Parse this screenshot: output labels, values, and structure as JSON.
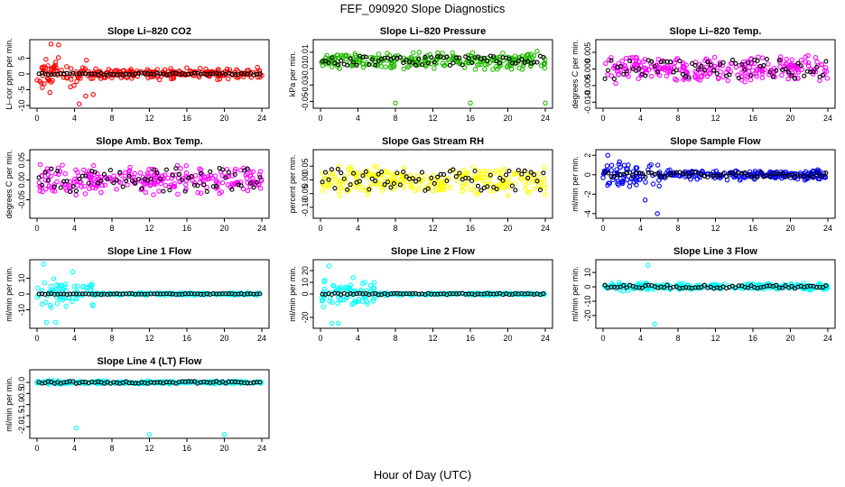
{
  "figure": {
    "title": "FEF_090920  Slope Diagnostics",
    "xlabel": "Hour of Day (UTC)"
  },
  "chart_data": [
    {
      "type": "scatter",
      "title": "Slope Li–820 CO2",
      "ylabel": "Li–cor ppm per min.",
      "xlim": [
        0,
        24
      ],
      "ylim": [
        -10,
        10
      ],
      "yticks": [
        "-10",
        "-5",
        "0",
        "5"
      ],
      "color": "#ff0000",
      "spread": 2.2,
      "early_spread": 6.0,
      "outliers": [
        [
          1.5,
          9.5
        ],
        [
          2.3,
          9.2
        ],
        [
          4.5,
          -9.5
        ],
        [
          5.2,
          -7.0
        ],
        [
          6.0,
          -6.5
        ]
      ],
      "mean_spread": 0.3,
      "seed": 11
    },
    {
      "type": "scatter",
      "title": "Slope Li–820 Pressure",
      "ylabel": "kPa per min.",
      "xlim": [
        0,
        24
      ],
      "ylim": [
        -0.055,
        0.022
      ],
      "yticks": [
        "-0.05",
        "-0.03",
        "-0.01",
        "0.01"
      ],
      "color": "#22bb00",
      "spread": 0.012,
      "early_spread": 0.012,
      "outliers": [
        [
          8.0,
          -0.052
        ],
        [
          16.0,
          -0.052
        ],
        [
          24.0,
          -0.052
        ]
      ],
      "mean_spread": 0.006,
      "seed": 23
    },
    {
      "type": "scatter",
      "title": "Slope Li–820 Temp.",
      "ylabel": "degrees C per min.",
      "xlim": [
        0,
        24
      ],
      "ylim": [
        -0.011,
        0.008
      ],
      "yticks": [
        "-0.010",
        "-0.005",
        "0.000",
        "0.005"
      ],
      "color": "#ff00ff",
      "spread": 0.0045,
      "early_spread": 0.0045,
      "outliers": [],
      "mean_spread": 0.003,
      "seed": 37
    },
    {
      "type": "scatter",
      "title": "Slope Amb. Box Temp.",
      "ylabel": "degrees C per min.",
      "xlim": [
        0,
        24
      ],
      "ylim": [
        -0.09,
        0.07
      ],
      "yticks": [
        "-0.05",
        "0.00",
        "0.05"
      ],
      "color": "#ff00ff",
      "spread": 0.04,
      "early_spread": 0.05,
      "outliers": [],
      "mean_spread": 0.03,
      "seed": 41
    },
    {
      "type": "scatter",
      "title": "Slope Gas Stream RH",
      "ylabel": "percent per min.",
      "xlim": [
        0,
        24
      ],
      "ylim": [
        -0.13,
        0.1
      ],
      "yticks": [
        "-0.10",
        "-0.05",
        "0.00",
        "0.05"
      ],
      "color": "#ffff00",
      "spread": 0.06,
      "early_spread": 0.07,
      "outliers": [],
      "mean_spread": 0.04,
      "seed": 53
    },
    {
      "type": "scatter",
      "title": "Slope Sample Flow",
      "ylabel": "ml/min per min.",
      "xlim": [
        0,
        24
      ],
      "ylim": [
        -4.2,
        2.3
      ],
      "yticks": [
        "-4",
        "-2",
        "0",
        "2"
      ],
      "color": "#0000ff",
      "spread": 0.6,
      "early_spread": 1.4,
      "outliers": [
        [
          0.5,
          2.0
        ],
        [
          5.8,
          -4.0
        ],
        [
          4.5,
          -2.6
        ]
      ],
      "mean_spread": 0.25,
      "seed": 67
    },
    {
      "type": "scatter",
      "title": "Slope Line 1 Flow",
      "ylabel": "ml/min per min.",
      "xlim": [
        0,
        24
      ],
      "ylim": [
        -20,
        20
      ],
      "yticks": [
        "-10",
        "0",
        "10"
      ],
      "color": "#00ffff",
      "spread": 1.0,
      "early_spread": 11.0,
      "outliers": [
        [
          0.7,
          19
        ],
        [
          1.0,
          -18
        ],
        [
          2.0,
          -18
        ],
        [
          3.8,
          14
        ]
      ],
      "mean_spread": 0.3,
      "seed": 71
    },
    {
      "type": "scatter",
      "title": "Slope Line 2 Flow",
      "ylabel": "ml/min per min.",
      "xlim": [
        0,
        24
      ],
      "ylim": [
        -27,
        27
      ],
      "yticks": [
        "-20",
        "0",
        "10",
        "20"
      ],
      "color": "#00ffff",
      "spread": 1.2,
      "early_spread": 14.0,
      "outliers": [
        [
          0.9,
          24
        ],
        [
          1.2,
          -25
        ],
        [
          1.9,
          -25
        ],
        [
          3.5,
          14
        ]
      ],
      "mean_spread": 0.6,
      "seed": 83
    },
    {
      "type": "scatter",
      "title": "Slope Line 3 Flow",
      "ylabel": "ml/min per min.",
      "xlim": [
        0,
        24
      ],
      "ylim": [
        -27,
        17
      ],
      "yticks": [
        "-20",
        "-10",
        "0",
        "10"
      ],
      "color": "#00ffff",
      "spread": 2.5,
      "early_spread": 3.5,
      "outliers": [
        [
          4.8,
          15
        ],
        [
          5.5,
          -26
        ]
      ],
      "mean_spread": 1.2,
      "seed": 97
    },
    {
      "type": "scatter",
      "title": "Slope Line 4 (LT) Flow",
      "ylabel": "ml/min per min.",
      "xlim": [
        0,
        24
      ],
      "ylim": [
        -2.4,
        0.45
      ],
      "yticks": [
        "-2.0",
        "-1.5",
        "-1.0",
        "-0.5",
        "0.0"
      ],
      "color": "#00ffff",
      "spread": 0.08,
      "early_spread": 0.1,
      "outliers": [
        [
          4.2,
          -2.05
        ],
        [
          12.0,
          -2.35
        ],
        [
          20.0,
          -2.35
        ]
      ],
      "mean_spread": 0.05,
      "seed": 101
    }
  ]
}
